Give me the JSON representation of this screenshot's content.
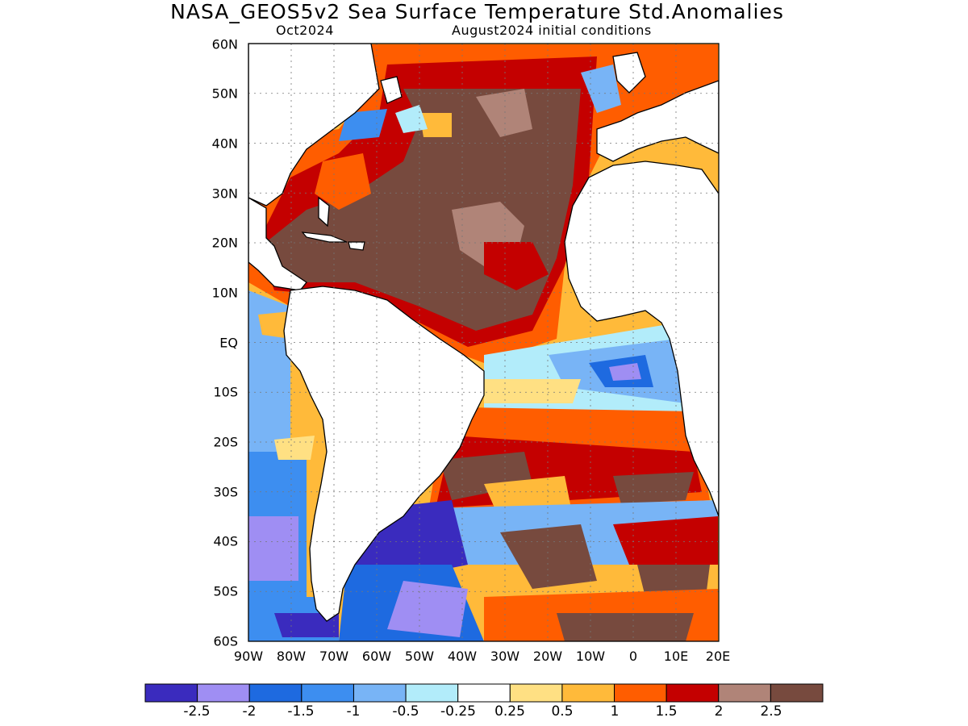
{
  "title": "NASA_GEOS5v2 Sea Surface Temperature Std.Anomalies",
  "subtitle_left": "Oct2024",
  "subtitle_right": "August2024 initial conditions",
  "lat_labels": [
    "60N",
    "50N",
    "40N",
    "30N",
    "20N",
    "10N",
    "EQ",
    "10S",
    "20S",
    "30S",
    "40S",
    "50S",
    "60S"
  ],
  "lon_labels": [
    "90W",
    "80W",
    "70W",
    "60W",
    "50W",
    "40W",
    "30W",
    "20W",
    "10W",
    "0",
    "10E",
    "20E"
  ],
  "map": {
    "extent": {
      "lon_min": -90,
      "lon_max": 20,
      "lat_min": -60,
      "lat_max": 60
    },
    "gridlines": "dotted",
    "features": [
      {
        "region": "North Atlantic subtropical gyre",
        "anomaly": "above 2.5",
        "color_key": "c2_5"
      },
      {
        "region": "Caribbean / Gulf of Mexico",
        "anomaly": "above 2.5",
        "color_key": "c2_5"
      },
      {
        "region": "Equatorial Atlantic cold tongue",
        "anomaly": "-2.5 to -0.5",
        "color_key": "cm2"
      },
      {
        "region": "South Atlantic 20S-35S",
        "anomaly": "1 to 2.5",
        "color_key": "c1_5"
      },
      {
        "region": "Southwest Atlantic off Argentina",
        "anomaly": "below -2.5",
        "color_key": "cm2_5"
      },
      {
        "region": "Southeast Pacific off Chile",
        "anomaly": "-1.5 to -0.5",
        "color_key": "cm1"
      }
    ]
  },
  "colorbar": {
    "colors": [
      "#3a2bbe",
      "#9f8ef3",
      "#1e6ae0",
      "#3d8ef0",
      "#78b4f6",
      "#b2ecfa",
      "#ffffff",
      "#ffe083",
      "#ffba3a",
      "#ff5d00",
      "#c40000",
      "#b08478",
      "#774a3e"
    ],
    "labels": [
      "-2.5",
      "-2",
      "-1.5",
      "-1",
      "-0.5",
      "-0.25",
      "0.25",
      "0.5",
      "1",
      "1.5",
      "2",
      "2.5"
    ]
  },
  "colors": {
    "cm2_5": "#3a2bbe",
    "cm2": "#9f8ef3",
    "cm1_5": "#1e6ae0",
    "cm1": "#3d8ef0",
    "cm0_5": "#78b4f6",
    "cm0_25": "#b2ecfa",
    "c0_25": "#ffe083",
    "c0_5": "#ffba3a",
    "c1": "#ff5d00",
    "c1_5": "#c40000",
    "c2": "#b08478",
    "c2_5": "#774a3e",
    "land": "#ffffff",
    "coast": "#000000"
  }
}
